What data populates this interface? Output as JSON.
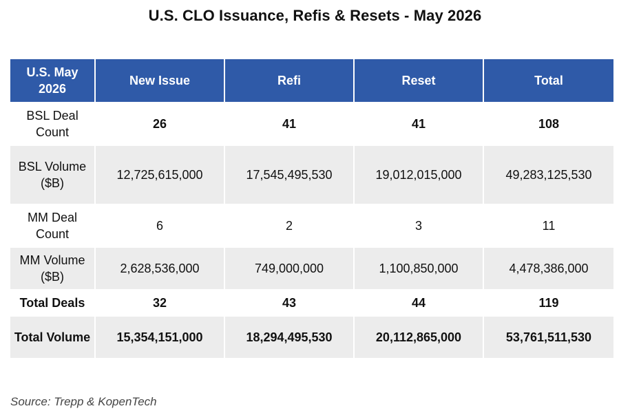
{
  "title": "U.S. CLO Issuance, Refis & Resets - May 2026",
  "table": {
    "headers": [
      "U.S. May 2026",
      "New Issue",
      "Refi",
      "Reset",
      "Total"
    ],
    "rows": [
      {
        "label": "BSL Deal Count",
        "values": [
          "26",
          "41",
          "41",
          "108"
        ]
      },
      {
        "label": "BSL Volume ($B)",
        "values": [
          "12,725,615,000",
          "17,545,495,530",
          "19,012,015,000",
          "49,283,125,530"
        ]
      },
      {
        "label": "MM Deal Count",
        "values": [
          "6",
          "2",
          "3",
          "11"
        ]
      },
      {
        "label": "MM Volume ($B)",
        "values": [
          "2,628,536,000",
          "749,000,000",
          "1,100,850,000",
          "4,478,386,000"
        ]
      },
      {
        "label": "Total Deals",
        "values": [
          "32",
          "43",
          "44",
          "119"
        ]
      },
      {
        "label": "Total Volume",
        "values": [
          "15,354,151,000",
          "18,294,495,530",
          "20,112,865,000",
          "53,761,511,530"
        ]
      }
    ]
  },
  "source": "Source: Trepp & KopenTech",
  "colors": {
    "header_bg": "#2f5aa8",
    "header_text": "#ffffff",
    "stripe_bg": "#ececec"
  },
  "chart_data": {
    "type": "table",
    "title": "U.S. CLO Issuance, Refis & Resets - May 2026",
    "columns": [
      "U.S. May 2026",
      "New Issue",
      "Refi",
      "Reset",
      "Total"
    ],
    "rows": [
      [
        "BSL Deal Count",
        26,
        41,
        41,
        108
      ],
      [
        "BSL Volume ($B)",
        12725615000,
        17545495530,
        19012015000,
        49283125530
      ],
      [
        "MM Deal Count",
        6,
        2,
        3,
        11
      ],
      [
        "MM Volume ($B)",
        2628536000,
        749000000,
        1100850000,
        4478386000
      ],
      [
        "Total Deals",
        32,
        43,
        44,
        119
      ],
      [
        "Total Volume",
        15354151000,
        18294495530,
        20112865000,
        53761511530
      ]
    ]
  }
}
